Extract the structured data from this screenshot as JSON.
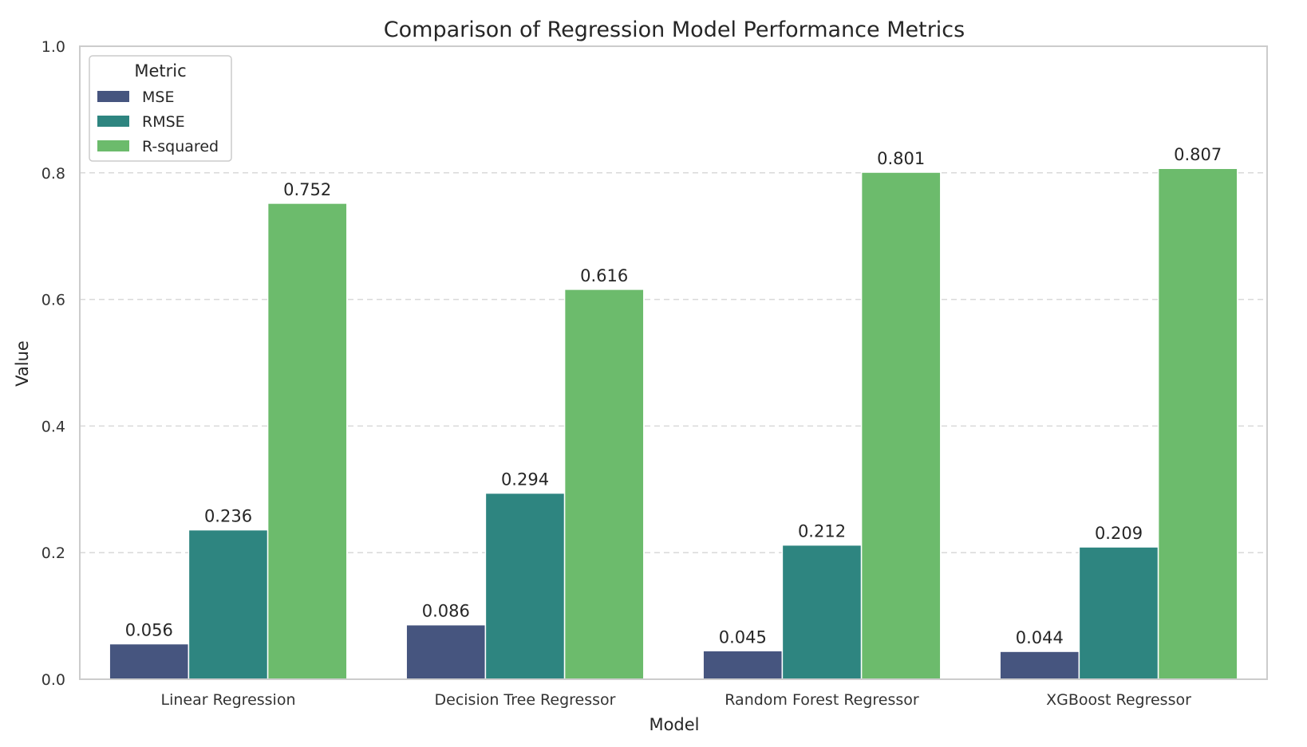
{
  "chart_data": {
    "type": "bar",
    "title": "Comparison of Regression Model Performance Metrics",
    "xlabel": "Model",
    "ylabel": "Value",
    "ylim": [
      0,
      1.0
    ],
    "yticks": [
      "0.0",
      "0.2",
      "0.4",
      "0.6",
      "0.8",
      "1.0"
    ],
    "yticks_values": [
      0,
      0.2,
      0.4,
      0.6,
      0.8,
      1.0
    ],
    "grid": "horizontal-dashed",
    "categories": [
      "Linear Regression",
      "Decision Tree Regressor",
      "Random Forest Regressor",
      "XGBoost Regressor"
    ],
    "legend": {
      "title": "Metric",
      "placement": "top-left"
    },
    "series": [
      {
        "name": "MSE",
        "color": "#46557f",
        "values": [
          0.056,
          0.086,
          0.045,
          0.044
        ],
        "labels": [
          "0.056",
          "0.086",
          "0.045",
          "0.044"
        ]
      },
      {
        "name": "RMSE",
        "color": "#2e8580",
        "values": [
          0.236,
          0.294,
          0.212,
          0.209
        ],
        "labels": [
          "0.236",
          "0.294",
          "0.212",
          "0.209"
        ]
      },
      {
        "name": "R-squared",
        "color": "#6cbb6c",
        "values": [
          0.752,
          0.616,
          0.801,
          0.807
        ],
        "labels": [
          "0.752",
          "0.616",
          "0.801",
          "0.807"
        ]
      }
    ]
  }
}
